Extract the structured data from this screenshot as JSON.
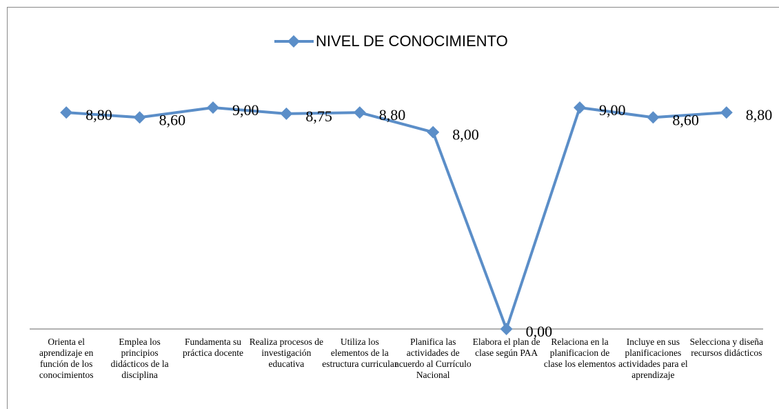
{
  "chart_data": {
    "type": "line",
    "categories": [
      "Orienta el aprendizaje en función de los conocimientos",
      "Emplea los principios didácticos de la disciplina",
      "Fundamenta su práctica docente",
      "Realiza procesos de investigación educativa",
      "Utiliza los elementos de la estructura curricular",
      "Planifica las actividades de acuerdo al Currículo Nacional",
      "Elabora el plan de clase según PAA",
      "Relaciona en la planificacion de clase los elementos",
      "Incluye en sus planificaciones actividades para el aprendizaje",
      "Selecciona y diseña recursos didácticos"
    ],
    "series": [
      {
        "name": "NIVEL DE CONOCIMIENTO",
        "color": "#5b8ec8",
        "values": [
          8.8,
          8.6,
          9.0,
          8.75,
          8.8,
          8.0,
          0.0,
          9.0,
          8.6,
          8.8
        ],
        "value_labels": [
          "8,80",
          "8,60",
          "9,00",
          "8,75",
          "8,80",
          "8,00",
          "0,00",
          "9,00",
          "8,60",
          "8,80"
        ]
      }
    ],
    "ylim": [
      0,
      9
    ],
    "legend": "top"
  }
}
